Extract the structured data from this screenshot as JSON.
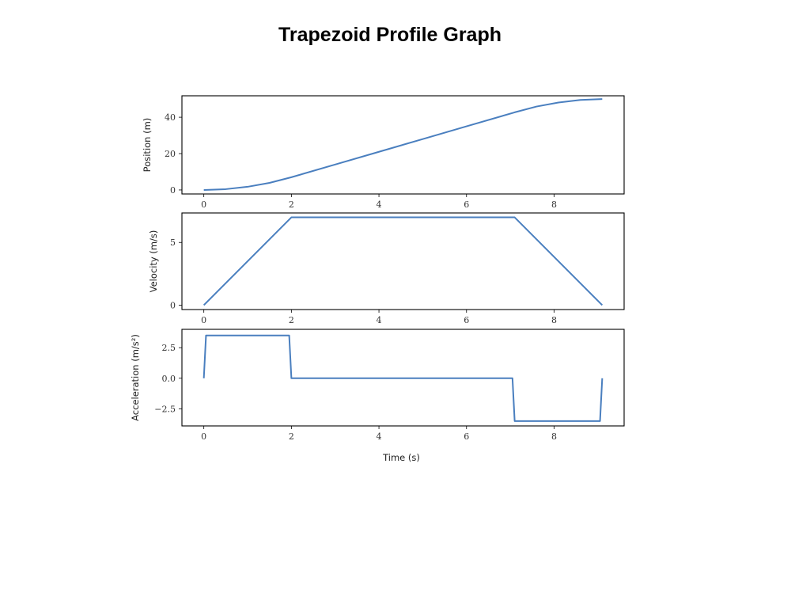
{
  "title": "Trapezoid Profile Graph",
  "colors": {
    "series": "#4a7fbf"
  },
  "chart_data": [
    {
      "type": "line",
      "ylabel": "Position (m)",
      "xlabel": "",
      "xlim": [
        -0.5,
        9.6
      ],
      "ylim": [
        -2.2,
        51.8
      ],
      "xticks": [
        0,
        2,
        4,
        6,
        8
      ],
      "yticks": [
        0,
        20,
        40
      ],
      "series": [
        {
          "x": [
            0,
            0.5,
            1.0,
            1.5,
            2.0,
            3.0,
            4.0,
            5.0,
            6.0,
            7.1,
            7.6,
            8.1,
            8.6,
            9.1
          ],
          "values": [
            0,
            0.44,
            1.75,
            3.9,
            7.0,
            14.0,
            21.0,
            28.0,
            35.0,
            42.7,
            45.9,
            48.1,
            49.5,
            50.0
          ]
        }
      ]
    },
    {
      "type": "line",
      "ylabel": "Velocity (m/s)",
      "xlabel": "",
      "xlim": [
        -0.5,
        9.6
      ],
      "ylim": [
        -0.35,
        7.35
      ],
      "xticks": [
        0,
        2,
        4,
        6,
        8
      ],
      "yticks": [
        0,
        5
      ],
      "series": [
        {
          "x": [
            0,
            2.0,
            7.1,
            9.1
          ],
          "values": [
            0,
            7.0,
            7.0,
            0
          ]
        }
      ]
    },
    {
      "type": "line",
      "ylabel": "Acceleration (m/s²)",
      "xlabel": "Time (s)",
      "xlim": [
        -0.5,
        9.6
      ],
      "ylim": [
        -3.9,
        4.0
      ],
      "xticks": [
        0,
        2,
        4,
        6,
        8
      ],
      "yticks": [
        2.5,
        0.0,
        -2.5
      ],
      "ytick_labels": [
        "2.5",
        "0.0",
        "−2.5"
      ],
      "series": [
        {
          "x": [
            0,
            0.05,
            1.95,
            2.0,
            7.05,
            7.1,
            9.05,
            9.1
          ],
          "values": [
            0,
            3.5,
            3.5,
            0,
            0,
            -3.5,
            -3.5,
            0
          ]
        }
      ]
    }
  ]
}
